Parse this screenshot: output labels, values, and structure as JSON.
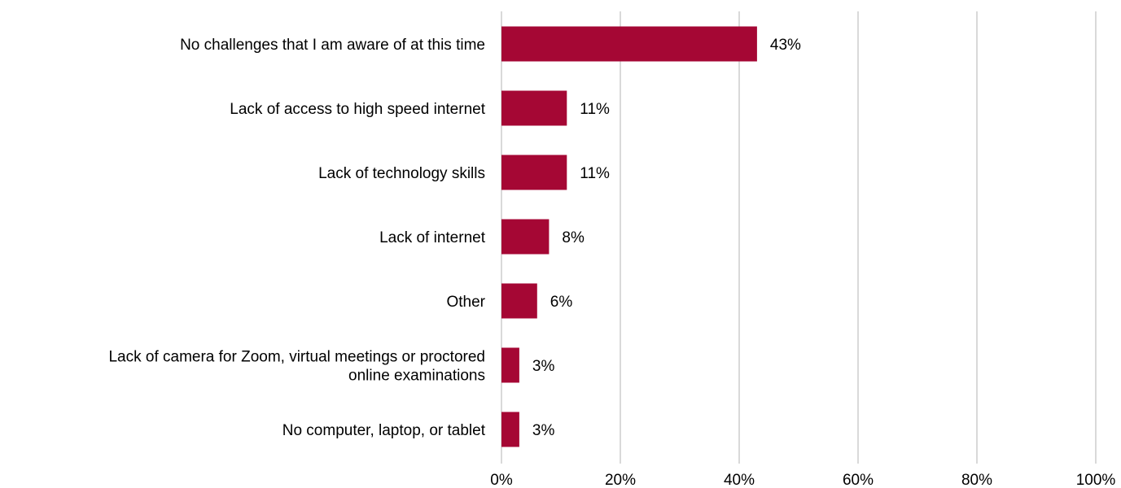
{
  "chart_data": {
    "type": "bar",
    "orientation": "horizontal",
    "categories": [
      "No challenges that I am aware of at this time",
      "Lack of access to high speed internet",
      "Lack of technology skills",
      "Lack of internet",
      "Other",
      "Lack of camera for Zoom, virtual meetings or proctored online examinations",
      "No computer, laptop, or tablet"
    ],
    "category_lines": [
      [
        "No challenges that I am aware of at this time"
      ],
      [
        "Lack of access to high speed internet"
      ],
      [
        "Lack of technology skills"
      ],
      [
        "Lack of internet"
      ],
      [
        "Other"
      ],
      [
        "Lack of camera for Zoom, virtual meetings or proctored",
        "online examinations"
      ],
      [
        "No computer, laptop, or tablet"
      ]
    ],
    "values": [
      43,
      11,
      11,
      8,
      6,
      3,
      3
    ],
    "value_labels": [
      "43%",
      "11%",
      "11%",
      "8%",
      "6%",
      "3%",
      "3%"
    ],
    "xlim": [
      0,
      100
    ],
    "x_ticks": [
      0,
      20,
      40,
      60,
      80,
      100
    ],
    "x_tick_labels": [
      "0%",
      "20%",
      "40%",
      "60%",
      "80%",
      "100%"
    ],
    "grid": true,
    "bar_color": "#a50734",
    "grid_color": "#d9d9d9"
  }
}
